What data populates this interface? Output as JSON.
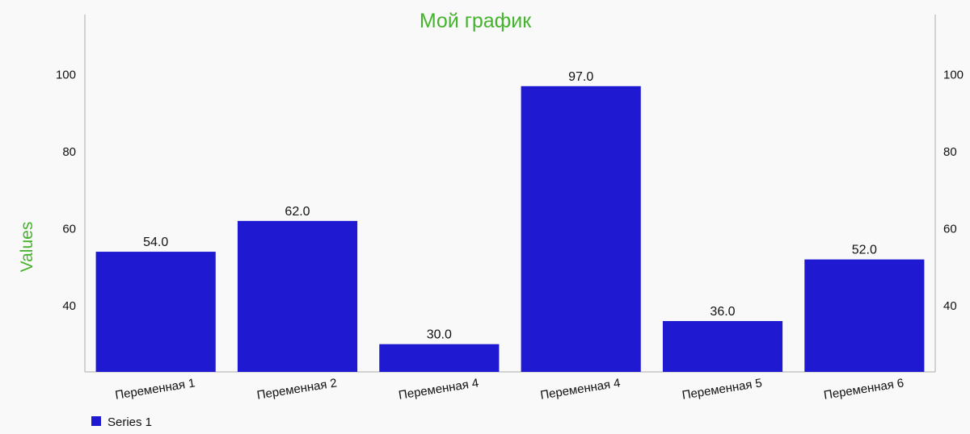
{
  "chart_data": {
    "type": "bar",
    "title": "Мой график",
    "ylabel": "Values",
    "categories": [
      "Переменная 1",
      "Переменная 2",
      "Переменная 4",
      "Переменная 4",
      "Переменная 5",
      "Переменная 6"
    ],
    "series": [
      {
        "name": "Series 1",
        "values": [
          54.0,
          62.0,
          30.0,
          97.0,
          36.0,
          52.0
        ],
        "value_labels": [
          "54.0",
          "62.0",
          "30.0",
          "97.0",
          "36.0",
          "52.0"
        ]
      }
    ],
    "ylim": [
      22.8,
      115.6
    ],
    "yticks": [
      40,
      60,
      80,
      100
    ],
    "ytick_labels": [
      "40",
      "60",
      "80",
      "100"
    ],
    "right_axis": true,
    "grid": false,
    "legend_position": "bottom-left"
  },
  "colors": {
    "bar": "#2019d2",
    "title": "#45b32e",
    "ylabel": "#45b32e",
    "axis": "#aaaaaa"
  }
}
